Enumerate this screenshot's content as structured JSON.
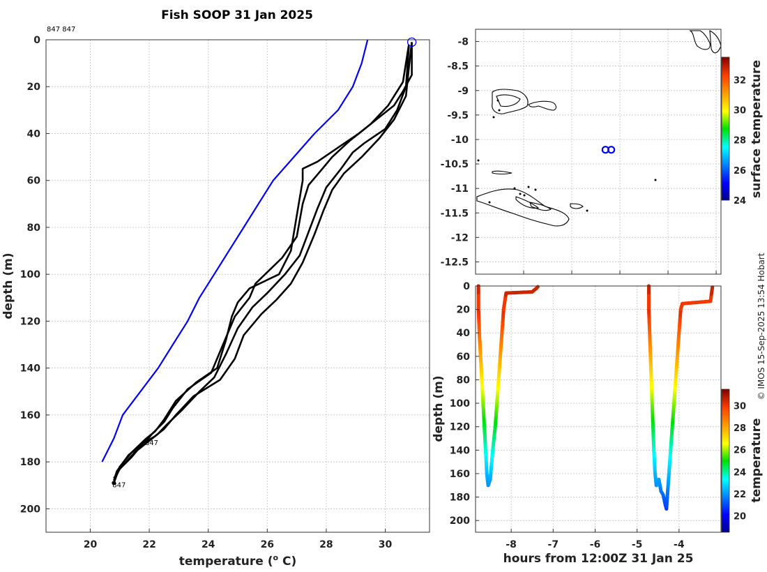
{
  "chart_data": [
    {
      "type": "line",
      "title": "Fish SOOP 31 Jan 2025",
      "xlabel": "temperature (",
      "xlabel_sup": "o",
      "xlabel_tail": " C)",
      "ylabel": "depth (m)",
      "xlim": [
        18.5,
        31.5
      ],
      "ylim": [
        210,
        0
      ],
      "xticks": [
        20,
        22,
        24,
        26,
        28,
        30
      ],
      "yticks": [
        0,
        20,
        40,
        60,
        80,
        100,
        120,
        140,
        160,
        180,
        200
      ],
      "top_annotation": "847 847",
      "series": [
        {
          "name": "profile-1",
          "color": "#000000",
          "points": [
            [
              30.9,
              1
            ],
            [
              30.9,
              15
            ],
            [
              30.6,
              22
            ],
            [
              30.3,
              28
            ],
            [
              29.8,
              33
            ],
            [
              29.1,
              40
            ],
            [
              28.4,
              46
            ],
            [
              27.7,
              52
            ],
            [
              27.2,
              55
            ],
            [
              27.2,
              60
            ],
            [
              27.0,
              75
            ],
            [
              26.8,
              90
            ],
            [
              26.4,
              100
            ],
            [
              25.4,
              106
            ],
            [
              25.0,
              112
            ],
            [
              24.8,
              118
            ],
            [
              24.6,
              128
            ],
            [
              24.3,
              140
            ],
            [
              23.6,
              146
            ],
            [
              22.9,
              154
            ],
            [
              22.5,
              162
            ],
            [
              22.2,
              167
            ],
            [
              21.9,
              170
            ],
            [
              21.4,
              176
            ],
            [
              21.0,
              182
            ],
            [
              20.8,
              189
            ]
          ]
        },
        {
          "name": "profile-2",
          "color": "#000000",
          "points": [
            [
              30.8,
              2
            ],
            [
              30.6,
              18
            ],
            [
              30.1,
              28
            ],
            [
              29.5,
              36
            ],
            [
              28.8,
              43
            ],
            [
              28.2,
              50
            ],
            [
              27.8,
              56
            ],
            [
              27.4,
              62
            ],
            [
              27.2,
              70
            ],
            [
              27.0,
              84
            ],
            [
              26.5,
              93
            ],
            [
              25.6,
              104
            ],
            [
              25.4,
              110
            ],
            [
              24.9,
              118
            ],
            [
              24.5,
              130
            ],
            [
              24.1,
              142
            ],
            [
              23.3,
              149
            ],
            [
              22.8,
              157
            ],
            [
              22.5,
              163
            ],
            [
              22.1,
              168
            ],
            [
              21.9,
              171
            ],
            [
              21.3,
              177
            ],
            [
              20.9,
              184
            ],
            [
              20.8,
              188
            ]
          ]
        },
        {
          "name": "profile-3",
          "color": "#000000",
          "points": [
            [
              30.8,
              3
            ],
            [
              30.7,
              20
            ],
            [
              30.4,
              30
            ],
            [
              30.0,
              38
            ],
            [
              29.3,
              44
            ],
            [
              28.9,
              48
            ],
            [
              28.5,
              55
            ],
            [
              28.0,
              63
            ],
            [
              27.7,
              72
            ],
            [
              27.4,
              82
            ],
            [
              27.1,
              92
            ],
            [
              26.6,
              100
            ],
            [
              26.0,
              108
            ],
            [
              25.5,
              114
            ],
            [
              25.0,
              123
            ],
            [
              24.6,
              134
            ],
            [
              24.2,
              144
            ],
            [
              23.7,
              150
            ],
            [
              23.1,
              158
            ],
            [
              22.6,
              164
            ],
            [
              22.3,
              168
            ],
            [
              22.0,
              171
            ],
            [
              21.5,
              176
            ],
            [
              21.0,
              183
            ],
            [
              20.8,
              188
            ]
          ]
        },
        {
          "name": "profile-4",
          "color": "#000000",
          "points": [
            [
              30.9,
              1
            ],
            [
              30.8,
              12
            ],
            [
              30.7,
              24
            ],
            [
              30.3,
              34
            ],
            [
              29.8,
              42
            ],
            [
              29.2,
              50
            ],
            [
              28.6,
              57
            ],
            [
              28.2,
              64
            ],
            [
              27.9,
              73
            ],
            [
              27.6,
              83
            ],
            [
              27.2,
              95
            ],
            [
              26.8,
              104
            ],
            [
              26.3,
              111
            ],
            [
              25.8,
              117
            ],
            [
              25.2,
              126
            ],
            [
              24.9,
              136
            ],
            [
              24.4,
              145
            ],
            [
              23.5,
              152
            ],
            [
              22.9,
              160
            ],
            [
              22.5,
              166
            ],
            [
              22.2,
              169
            ],
            [
              21.8,
              172
            ],
            [
              21.4,
              178
            ],
            [
              21.0,
              183
            ],
            [
              20.8,
              187
            ]
          ]
        },
        {
          "name": "climatology",
          "color": "#0000ff",
          "points": [
            [
              29.4,
              0
            ],
            [
              29.2,
              10
            ],
            [
              28.9,
              20
            ],
            [
              28.4,
              30
            ],
            [
              27.6,
              40
            ],
            [
              26.9,
              50
            ],
            [
              26.2,
              60
            ],
            [
              25.7,
              70
            ],
            [
              25.2,
              80
            ],
            [
              24.7,
              90
            ],
            [
              24.2,
              100
            ],
            [
              23.7,
              110
            ],
            [
              23.3,
              120
            ],
            [
              22.8,
              130
            ],
            [
              22.3,
              140
            ],
            [
              21.7,
              150
            ],
            [
              21.1,
              160
            ],
            [
              20.8,
              170
            ],
            [
              20.4,
              180
            ]
          ]
        }
      ],
      "markers": [
        {
          "label": "847",
          "t": 20.8,
          "d": 189
        },
        {
          "label": "847",
          "t": 21.9,
          "d": 171
        }
      ],
      "surface_marker": {
        "t": 30.9,
        "d": 1
      }
    },
    {
      "type": "scatter",
      "name": "location-map",
      "xlim": [
        152.0,
        157.1
      ],
      "ylim": [
        -12.75,
        -7.75
      ],
      "xticks": [
        153,
        154,
        155,
        156,
        157
      ],
      "yticks": [
        -8,
        -8.5,
        -9,
        -9.5,
        -10,
        -10.5,
        -11,
        -11.5,
        -12,
        -12.5
      ],
      "ytick_labels": [
        "-8",
        "-8.5",
        "-9",
        "-9.5",
        "-10",
        "-10.5",
        "-11",
        "-11.5",
        "-12",
        "-12.5"
      ],
      "ship_positions": [
        [
          154.7,
          -10.21
        ],
        [
          154.82,
          -10.21
        ]
      ],
      "colorbar": {
        "label": "surface temperature",
        "ticks": [
          24,
          26,
          28,
          30,
          32
        ],
        "range": [
          24,
          33.5
        ]
      }
    },
    {
      "type": "scatter",
      "name": "depth-time",
      "xlabel": "hours from 12:00Z 31 Jan 25",
      "ylabel": "depth (m)",
      "xlim": [
        -8.85,
        -3.0
      ],
      "ylim": [
        210,
        0
      ],
      "xticks": [
        -8,
        -7,
        -6,
        -5,
        -4
      ],
      "yticks": [
        0,
        20,
        40,
        60,
        80,
        100,
        120,
        140,
        160,
        180,
        200
      ],
      "dive1": [
        [
          -8.78,
          0
        ],
        [
          -8.78,
          20
        ],
        [
          -8.76,
          40
        ],
        [
          -8.73,
          60
        ],
        [
          -8.7,
          80
        ],
        [
          -8.67,
          100
        ],
        [
          -8.64,
          120
        ],
        [
          -8.61,
          140
        ],
        [
          -8.58,
          160
        ],
        [
          -8.55,
          170
        ],
        [
          -8.5,
          165
        ],
        [
          -8.44,
          140
        ],
        [
          -8.38,
          120
        ],
        [
          -8.34,
          100
        ],
        [
          -8.3,
          80
        ],
        [
          -8.26,
          60
        ],
        [
          -8.22,
          40
        ],
        [
          -8.18,
          20
        ],
        [
          -8.14,
          10
        ],
        [
          -8.12,
          6
        ],
        [
          -7.5,
          5
        ],
        [
          -7.4,
          2
        ],
        [
          -7.35,
          0
        ]
      ],
      "dive2": [
        [
          -4.72,
          0
        ],
        [
          -4.72,
          20
        ],
        [
          -4.7,
          40
        ],
        [
          -4.68,
          60
        ],
        [
          -4.66,
          80
        ],
        [
          -4.64,
          100
        ],
        [
          -4.62,
          120
        ],
        [
          -4.6,
          140
        ],
        [
          -4.57,
          160
        ],
        [
          -4.54,
          170
        ],
        [
          -4.48,
          165
        ],
        [
          -4.43,
          175
        ],
        [
          -4.38,
          178
        ],
        [
          -4.33,
          186
        ],
        [
          -4.3,
          190
        ],
        [
          -4.28,
          180
        ],
        [
          -4.24,
          160
        ],
        [
          -4.2,
          140
        ],
        [
          -4.16,
          120
        ],
        [
          -4.12,
          100
        ],
        [
          -4.08,
          80
        ],
        [
          -4.04,
          60
        ],
        [
          -4.0,
          40
        ],
        [
          -3.96,
          20
        ],
        [
          -3.92,
          15
        ],
        [
          -3.25,
          13
        ],
        [
          -3.22,
          5
        ],
        [
          -3.2,
          0
        ]
      ],
      "colorbar": {
        "label": "temperature",
        "ticks": [
          20,
          22,
          24,
          26,
          28,
          30
        ],
        "range": [
          18.5,
          31.5
        ]
      }
    }
  ],
  "credit": "© IMOS 15-Sep-2025 13:54 Hobart"
}
